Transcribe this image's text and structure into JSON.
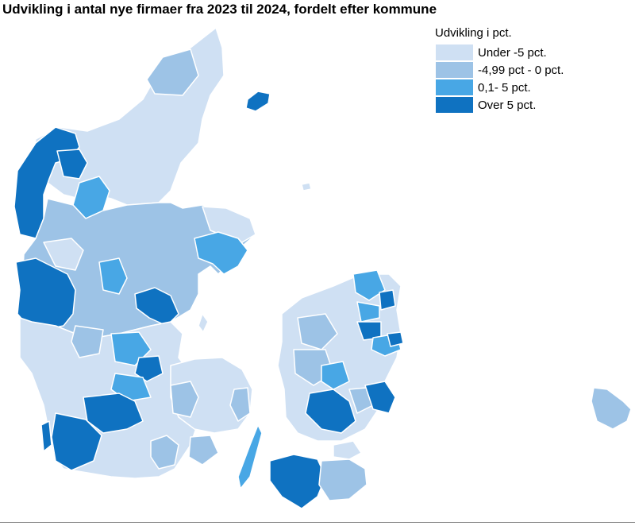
{
  "title": "Udvikling i antal nye firmaer fra 2023 til 2024, fordelt efter kommune",
  "legend": {
    "title": "Udvikling i pct.",
    "items": [
      {
        "label": "Under -5 pct.",
        "color": "#cfe0f3"
      },
      {
        "label": "-4,99 pct - 0 pct.",
        "color": "#9dc3e6"
      },
      {
        "label": "0,1- 5 pct.",
        "color": "#48a7e5"
      },
      {
        "label": "Over 5 pct.",
        "color": "#0f72c1"
      }
    ]
  },
  "colors": {
    "c1": "#cfe0f3",
    "c2": "#9dc3e6",
    "c3": "#48a7e5",
    "c4": "#0f72c1",
    "border": "#ffffff",
    "rule": "#8a8a8a"
  }
}
